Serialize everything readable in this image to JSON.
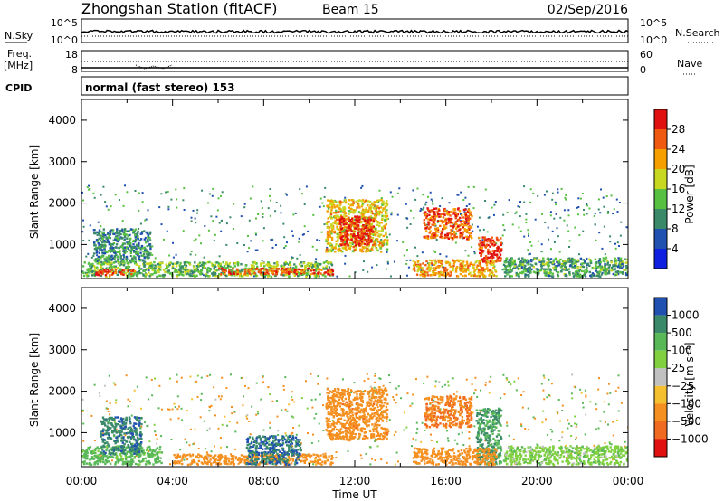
{
  "header": {
    "title": "Zhongshan Station (fitACF)",
    "beam": "Beam 15",
    "date": "02/Sep/2016"
  },
  "noise_panel": {
    "left_label": "N.Sky",
    "right_label": "N.Search",
    "left_ticks": [
      "10^5",
      "10^0"
    ],
    "right_ticks": [
      "10^5",
      "10^0"
    ]
  },
  "freq_panel": {
    "left_label_1": "Freq.",
    "left_label_2": "[MHz]",
    "left_ticks": [
      "18",
      "8"
    ],
    "right_label": "Nave",
    "right_ticks": [
      "60",
      "0"
    ]
  },
  "cpid": {
    "label": "CPID",
    "text": "normal (fast stereo) 153"
  },
  "x_axis": {
    "title": "Time UT",
    "ticks": [
      "00:00",
      "04:00",
      "08:00",
      "12:00",
      "16:00",
      "20:00",
      "00:00"
    ]
  },
  "colorbars": {
    "power": {
      "label": "Power [dB]",
      "ticks": [
        "28",
        "24",
        "20",
        "16",
        "12",
        "8",
        "4"
      ],
      "colors": [
        "#e01010",
        "#f05a10",
        "#f5a000",
        "#c8d820",
        "#58c040",
        "#3a8a6a",
        "#2050b0",
        "#1020e0"
      ]
    },
    "velocity": {
      "label": "Velocity [m s⁻¹]",
      "ticks": [
        "1000",
        "500",
        "100",
        "25",
        "−25",
        "−100",
        "−500",
        "−1000"
      ],
      "colors": [
        "#2050b0",
        "#3a8a6a",
        "#58b858",
        "#80d040",
        "#c0c0c0",
        "#f5c030",
        "#f59020",
        "#f06a20",
        "#e01010"
      ]
    }
  },
  "chart_data": [
    {
      "type": "heatmap",
      "name": "power",
      "ylabel": "Slant Range [km]",
      "xlabel": "",
      "xlim_hours": [
        0,
        24
      ],
      "ylim_km": [
        180,
        4500
      ],
      "yticks": [
        "1000",
        "2000",
        "3000",
        "4000"
      ],
      "colorbar_label": "Power [dB]",
      "colorbar_range": [
        0,
        32
      ],
      "features": [
        {
          "t_start": 0.0,
          "t_end": 11.0,
          "r_min": 250,
          "r_max": 600,
          "value": 14
        },
        {
          "t_start": 0.6,
          "t_end": 2.3,
          "r_min": 280,
          "r_max": 420,
          "value": 28
        },
        {
          "t_start": 6.0,
          "t_end": 11.0,
          "r_min": 300,
          "r_max": 450,
          "value": 26
        },
        {
          "t_start": 0.5,
          "t_end": 3.0,
          "r_min": 600,
          "r_max": 1400,
          "value": 10
        },
        {
          "t_start": 10.7,
          "t_end": 13.4,
          "r_min": 850,
          "r_max": 2100,
          "value": 20
        },
        {
          "t_start": 11.3,
          "t_end": 12.8,
          "r_min": 1000,
          "r_max": 1700,
          "value": 30
        },
        {
          "t_start": 15.0,
          "t_end": 17.1,
          "r_min": 1150,
          "r_max": 1900,
          "value": 26
        },
        {
          "t_start": 17.4,
          "t_end": 18.4,
          "r_min": 600,
          "r_max": 1200,
          "value": 28
        },
        {
          "t_start": 14.5,
          "t_end": 18.2,
          "r_min": 250,
          "r_max": 650,
          "value": 22
        },
        {
          "t_start": 18.5,
          "t_end": 24.0,
          "r_min": 250,
          "r_max": 700,
          "value": 12
        }
      ]
    },
    {
      "type": "heatmap",
      "name": "velocity",
      "ylabel": "Slant Range [km]",
      "xlabel": "Time UT",
      "xlim_hours": [
        0,
        24
      ],
      "ylim_km": [
        180,
        4500
      ],
      "yticks": [
        "1000",
        "2000",
        "3000",
        "4000"
      ],
      "colorbar_label": "Velocity [m s⁻¹]",
      "colorbar_range": [
        -1000,
        1000
      ],
      "features": [
        {
          "t_start": 0.0,
          "t_end": 3.5,
          "r_min": 250,
          "r_max": 700,
          "value": 100
        },
        {
          "t_start": 0.8,
          "t_end": 2.6,
          "r_min": 500,
          "r_max": 1400,
          "value": 600
        },
        {
          "t_start": 4.0,
          "t_end": 11.0,
          "r_min": 250,
          "r_max": 500,
          "value": -120
        },
        {
          "t_start": 7.2,
          "t_end": 9.6,
          "r_min": 250,
          "r_max": 950,
          "value": 700
        },
        {
          "t_start": 10.7,
          "t_end": 13.4,
          "r_min": 850,
          "r_max": 2100,
          "value": -200
        },
        {
          "t_start": 15.0,
          "t_end": 17.1,
          "r_min": 1150,
          "r_max": 1900,
          "value": -300
        },
        {
          "t_start": 17.3,
          "t_end": 18.4,
          "r_min": 250,
          "r_max": 1600,
          "value": 300
        },
        {
          "t_start": 14.5,
          "t_end": 18.2,
          "r_min": 250,
          "r_max": 650,
          "value": -150
        },
        {
          "t_start": 18.5,
          "t_end": 24.0,
          "r_min": 250,
          "r_max": 700,
          "value": 40
        }
      ]
    }
  ]
}
